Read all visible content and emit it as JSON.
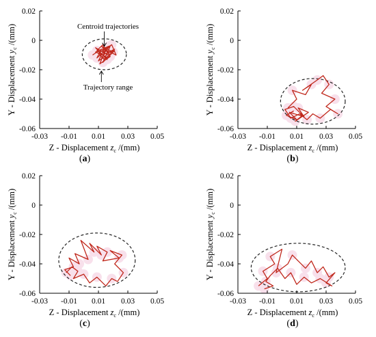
{
  "colors": {
    "trajectory": "#c0281c",
    "highlight": "#f3c7dc",
    "range_ellipse": "#222222",
    "axis": "#000000"
  },
  "chart_data": [
    {
      "type": "line",
      "panel_label": "a",
      "xlabel": "Z - Displacement",
      "xlabel_var": "z",
      "xlabel_sub": "c",
      "xlabel_unit": "/(mm)",
      "ylabel": "Y - Displacement",
      "ylabel_var": "y",
      "ylabel_sub": "c",
      "ylabel_unit": "/(mm)",
      "xlim": [
        -0.03,
        0.05
      ],
      "ylim": [
        -0.06,
        0.02
      ],
      "x_ticks": [
        "-0.03",
        "-0.01",
        "0.01",
        "0.03",
        "0.05"
      ],
      "y_ticks": [
        "0.02",
        "0",
        "-0.02",
        "-0.04",
        "-0.06"
      ],
      "annotations": [
        "Centroid trajectories",
        "Trajectory range"
      ],
      "range": {
        "center": [
          0.014,
          -0.0095
        ],
        "radius": [
          0.015,
          0.0105
        ]
      },
      "series": [
        {
          "x": [
            0.006,
            0.012,
            0.009,
            0.018,
            0.013,
            0.021,
            0.015,
            0.008,
            0.016,
            0.011,
            0.019,
            0.022,
            0.014,
            0.01,
            0.017,
            0.012,
            0.02,
            0.016,
            0.009,
            0.013,
            0.018,
            0.011,
            0.015,
            0.01,
            0.014,
            0.021,
            0.013,
            0.008,
            0.017,
            0.012
          ],
          "y": [
            -0.01,
            -0.006,
            -0.012,
            -0.004,
            -0.015,
            -0.007,
            -0.009,
            -0.005,
            -0.013,
            -0.008,
            -0.003,
            -0.01,
            -0.006,
            -0.014,
            -0.009,
            -0.004,
            -0.008,
            -0.012,
            -0.007,
            -0.003,
            -0.011,
            -0.016,
            -0.005,
            -0.009,
            -0.013,
            -0.006,
            -0.01,
            -0.008,
            -0.004,
            -0.012
          ]
        }
      ]
    },
    {
      "type": "line",
      "panel_label": "b",
      "xlabel": "Z - Displacement",
      "xlabel_var": "z",
      "xlabel_sub": "c",
      "xlabel_unit": "/(mm)",
      "ylabel": "Y - Displacement",
      "ylabel_var": "y",
      "ylabel_sub": "c",
      "ylabel_unit": "/(mm)",
      "xlim": [
        -0.03,
        0.05
      ],
      "ylim": [
        -0.06,
        0.02
      ],
      "x_ticks": [
        "-0.03",
        "-0.01",
        "0.01",
        "0.03",
        "0.05"
      ],
      "y_ticks": [
        "0.02",
        "0",
        "-0.02",
        "-0.04",
        "-0.06"
      ],
      "range": {
        "center": [
          0.021,
          -0.0415
        ],
        "radius": [
          0.022,
          0.0155
        ]
      },
      "series": [
        {
          "x": [
            0.004,
            0.01,
            0.007,
            0.016,
            0.02,
            0.014,
            0.024,
            0.028,
            0.032,
            0.027,
            0.036,
            0.03,
            0.038,
            0.033,
            0.026,
            0.021,
            0.017,
            0.012,
            0.006,
            0.002,
            0.008,
            0.014,
            0.009,
            0.018,
            0.011,
            0.015,
            0.005,
            0.01,
            0.003,
            0.008
          ],
          "y": [
            -0.046,
            -0.04,
            -0.034,
            -0.037,
            -0.03,
            -0.034,
            -0.027,
            -0.024,
            -0.03,
            -0.036,
            -0.04,
            -0.045,
            -0.05,
            -0.047,
            -0.053,
            -0.05,
            -0.054,
            -0.05,
            -0.053,
            -0.047,
            -0.045,
            -0.051,
            -0.055,
            -0.049,
            -0.046,
            -0.052,
            -0.049,
            -0.054,
            -0.051,
            -0.048
          ]
        }
      ]
    },
    {
      "type": "line",
      "panel_label": "c",
      "xlabel": "Z - Displacement",
      "xlabel_var": "z",
      "xlabel_sub": "c",
      "xlabel_unit": "/(mm)",
      "ylabel": "Y - Displacement",
      "ylabel_var": "y",
      "ylabel_sub": "c",
      "ylabel_unit": "/(mm)",
      "xlim": [
        -0.03,
        0.05
      ],
      "ylim": [
        -0.06,
        0.02
      ],
      "x_ticks": [
        "-0.03",
        "-0.01",
        "0.01",
        "0.03",
        "0.05"
      ],
      "y_ticks": [
        "0.02",
        "0",
        "-0.02",
        "-0.04",
        "-0.06"
      ],
      "range": {
        "center": [
          0.009,
          -0.0375
        ],
        "radius": [
          0.026,
          0.0185
        ]
      },
      "series": [
        {
          "x": [
            -0.012,
            -0.008,
            -0.004,
            -0.007,
            0.0,
            0.004,
            0.009,
            0.015,
            0.019,
            0.023,
            0.027,
            0.021,
            0.026,
            0.018,
            0.024,
            0.013,
            0.016,
            0.009,
            0.012,
            0.004,
            0.007,
            -0.002,
            0.003,
            -0.006,
            -0.003,
            -0.01,
            -0.007,
            -0.013,
            -0.009
          ],
          "y": [
            -0.046,
            -0.042,
            -0.045,
            -0.05,
            -0.047,
            -0.053,
            -0.049,
            -0.055,
            -0.05,
            -0.052,
            -0.046,
            -0.04,
            -0.034,
            -0.031,
            -0.036,
            -0.038,
            -0.032,
            -0.028,
            -0.034,
            -0.026,
            -0.032,
            -0.024,
            -0.037,
            -0.033,
            -0.04,
            -0.036,
            -0.042,
            -0.044,
            -0.048
          ]
        }
      ]
    },
    {
      "type": "line",
      "panel_label": "d",
      "xlabel": "Z - Displacement",
      "xlabel_var": "z",
      "xlabel_sub": "c",
      "xlabel_unit": "/(mm)",
      "ylabel": "Y - Displacement",
      "ylabel_var": "y",
      "ylabel_sub": "c",
      "ylabel_unit": "/(mm)",
      "xlim": [
        -0.03,
        0.05
      ],
      "ylim": [
        -0.06,
        0.02
      ],
      "x_ticks": [
        "-0.03",
        "-0.01",
        "0.01",
        "0.03",
        "0.05"
      ],
      "y_ticks": [
        "0.02",
        "0",
        "-0.02",
        "-0.04",
        "-0.06"
      ],
      "range": {
        "center": [
          0.011,
          -0.0425
        ],
        "radius": [
          0.032,
          0.0165
        ]
      },
      "series": [
        {
          "x": [
            -0.016,
            -0.01,
            -0.013,
            -0.005,
            -0.008,
            0.0,
            -0.004,
            0.004,
            0.007,
            0.011,
            0.016,
            0.02,
            0.024,
            0.028,
            0.032,
            0.036,
            0.03,
            0.034,
            0.026,
            0.02,
            0.015,
            0.01,
            0.006,
            0.002,
            -0.003,
            -0.008,
            -0.011,
            -0.006,
            -0.012
          ],
          "y": [
            -0.055,
            -0.05,
            -0.045,
            -0.04,
            -0.035,
            -0.03,
            -0.046,
            -0.04,
            -0.034,
            -0.038,
            -0.043,
            -0.038,
            -0.046,
            -0.042,
            -0.049,
            -0.046,
            -0.053,
            -0.055,
            -0.05,
            -0.053,
            -0.049,
            -0.054,
            -0.046,
            -0.05,
            -0.043,
            -0.048,
            -0.052,
            -0.055,
            -0.057
          ]
        }
      ]
    }
  ]
}
